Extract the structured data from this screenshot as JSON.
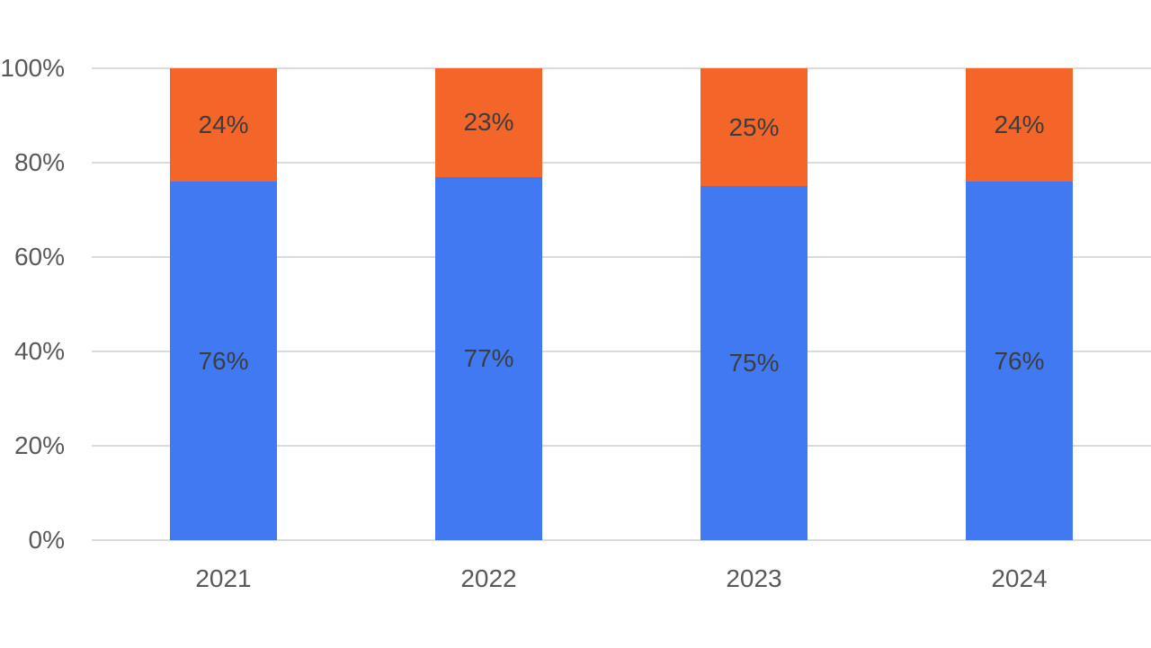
{
  "chart_data": {
    "type": "bar",
    "stacked": true,
    "orientation": "vertical",
    "title": "",
    "xlabel": "",
    "ylabel": "",
    "legend": "none",
    "grid": true,
    "categories": [
      "2021",
      "2022",
      "2023",
      "2024"
    ],
    "series": [
      {
        "name": "blue-series",
        "color": "#4179F2",
        "values": [
          76,
          77,
          75,
          76
        ],
        "data_labels": [
          "76%",
          "77%",
          "75%",
          "76%"
        ]
      },
      {
        "name": "orange-series",
        "color": "#F4652A",
        "values": [
          24,
          23,
          25,
          24
        ],
        "data_labels": [
          "24%",
          "23%",
          "25%",
          "24%"
        ]
      }
    ],
    "y_axis": {
      "range": [
        0,
        100
      ],
      "tick_values": [
        0,
        20,
        40,
        60,
        80,
        100
      ],
      "tick_labels": [
        "0%",
        "20%",
        "40%",
        "60%",
        "80%",
        "100%"
      ]
    },
    "colors": {
      "background": "#ffffff",
      "gridline": "#d9dcdb",
      "axis_text": "#595959",
      "data_label_text": "#3d3d3d"
    }
  }
}
